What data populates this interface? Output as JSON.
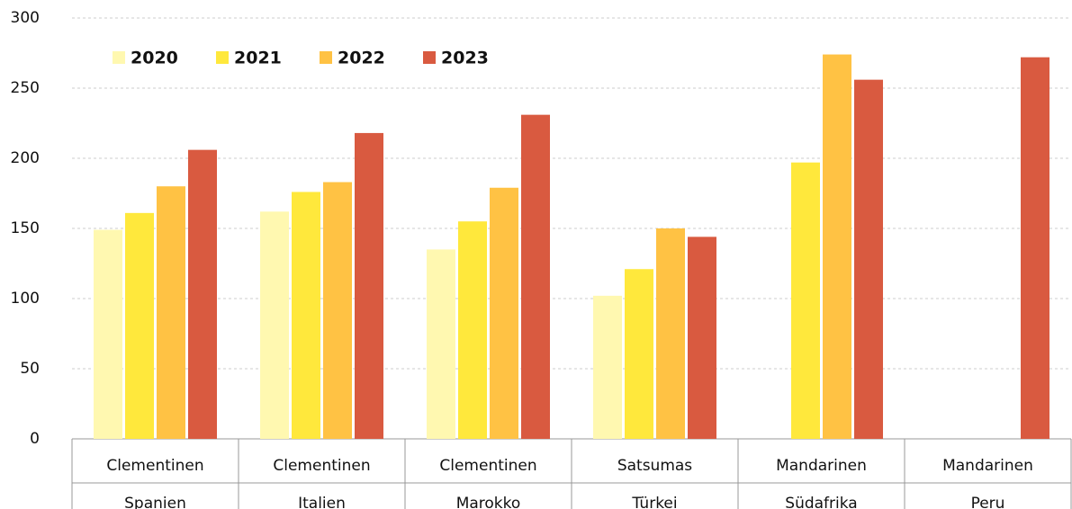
{
  "chart_data": {
    "type": "bar",
    "categories": [
      [
        "Clementinen",
        "Spanien"
      ],
      [
        "Clementinen",
        "Italien"
      ],
      [
        "Clementinen",
        "Marokko"
      ],
      [
        "Satsumas",
        "Türkei"
      ],
      [
        "Mandarinen",
        "Südafrika"
      ],
      [
        "Mandarinen",
        "Peru"
      ]
    ],
    "series": [
      {
        "name": "2020",
        "color": "#fff8b0",
        "values": [
          149,
          162,
          135,
          102,
          null,
          null
        ]
      },
      {
        "name": "2021",
        "color": "#ffe83c",
        "values": [
          161,
          176,
          155,
          121,
          197,
          null
        ]
      },
      {
        "name": "2022",
        "color": "#ffc244",
        "values": [
          180,
          183,
          179,
          150,
          274,
          null
        ]
      },
      {
        "name": "2023",
        "color": "#d95a40",
        "values": [
          206,
          218,
          231,
          144,
          256,
          272
        ]
      }
    ],
    "ylim": [
      0,
      300
    ],
    "yticks": [
      0,
      50,
      100,
      150,
      200,
      250,
      300
    ],
    "grid": true,
    "legend": "top-left"
  }
}
